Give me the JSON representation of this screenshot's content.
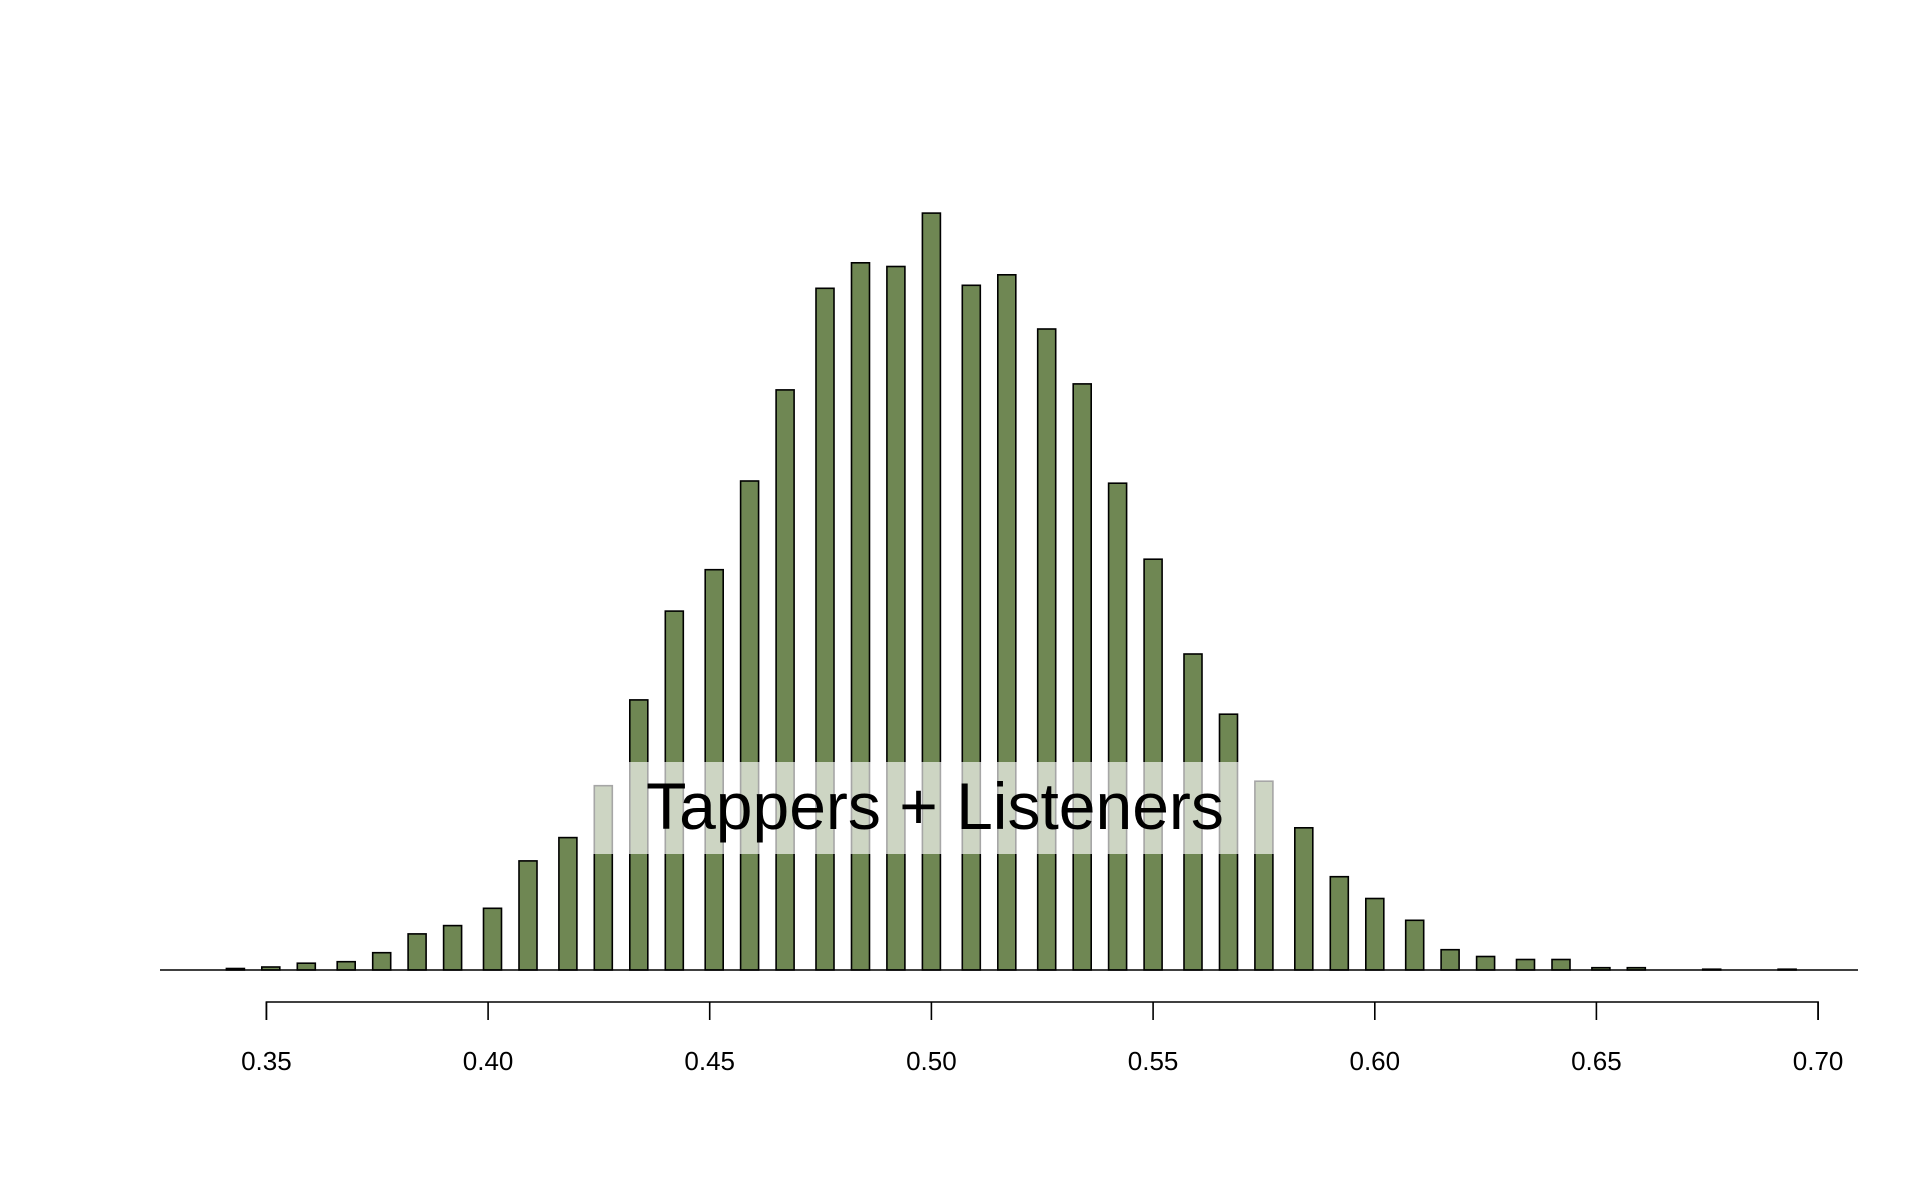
{
  "chart_data": {
    "type": "bar",
    "annotation": "Tappers + Listeners",
    "bar_color": "#6f8753",
    "x": [
      0.343,
      0.351,
      0.359,
      0.368,
      0.376,
      0.384,
      0.392,
      0.401,
      0.409,
      0.418,
      0.426,
      0.434,
      0.442,
      0.451,
      0.459,
      0.467,
      0.476,
      0.484,
      0.492,
      0.5,
      0.509,
      0.517,
      0.526,
      0.534,
      0.542,
      0.55,
      0.559,
      0.567,
      0.575,
      0.584,
      0.592,
      0.6,
      0.609,
      0.617,
      0.625,
      0.634,
      0.642,
      0.651,
      0.659,
      0.676,
      0.693
    ],
    "values": [
      2,
      4,
      9,
      11,
      23,
      48,
      59,
      82,
      145,
      176,
      245,
      359,
      477,
      532,
      650,
      771,
      906,
      940,
      935,
      1006,
      910,
      924,
      852,
      779,
      647,
      546,
      420,
      340,
      251,
      189,
      124,
      95,
      66,
      27,
      18,
      14,
      14,
      3,
      3,
      1,
      1
    ],
    "xlim": [
      0.326,
      0.709
    ],
    "ylim": [
      0,
      1050
    ],
    "x_ticks": [
      0.35,
      0.4,
      0.45,
      0.5,
      0.55,
      0.6,
      0.65,
      0.7
    ],
    "x_tick_labels": [
      "0.35",
      "0.40",
      "0.45",
      "0.50",
      "0.55",
      "0.60",
      "0.65",
      "0.70"
    ],
    "xlabel": "",
    "ylabel": "",
    "grid": false
  }
}
